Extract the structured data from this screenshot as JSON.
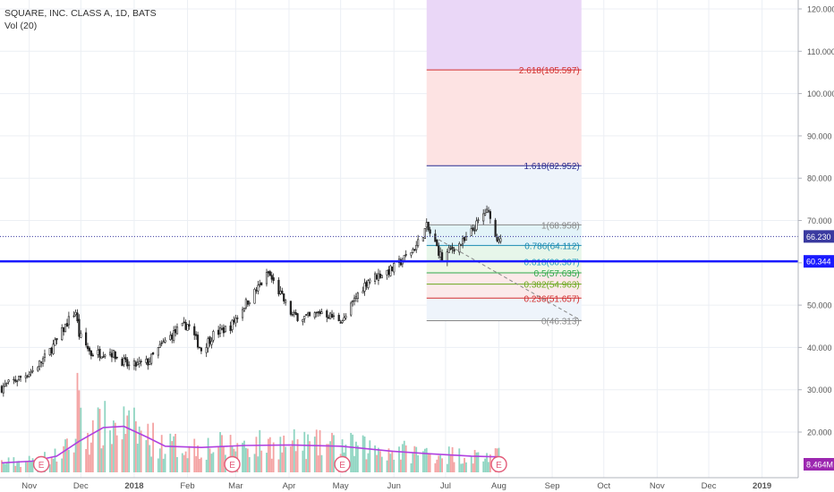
{
  "legend": {
    "symbol": "SQUARE, INC. CLASS A, 1D, BATS",
    "volume": "Vol (20)"
  },
  "colors": {
    "up": "#26a69a",
    "down": "#ef5350",
    "candle": "#222222",
    "vol_up": "#8fd5c2",
    "vol_down": "#f4a3a3",
    "vol_ma": "#b040e0",
    "support_line": "#1a1aff",
    "price_line": "#3a3aa0",
    "earnings_marker": "#e35c7a",
    "fib_top_fill": "#ead7f7",
    "fib_mid_fill": "#fde3e3",
    "fib_band_fill": "#ddeeff",
    "grid": "#eceff4"
  },
  "chart_data": {
    "type": "candlestick",
    "title": "SQUARE, INC. CLASS A, 1D, BATS",
    "y_axis": {
      "ticks": [
        20,
        30,
        40,
        50,
        60,
        70,
        80,
        90,
        100,
        110,
        120
      ],
      "tick_labels": [
        "20.000",
        "30.000",
        "40.000",
        "50.000",
        "60.000",
        "70.000",
        "80.000",
        "90.000",
        "100.000",
        "110.000",
        "120.000"
      ],
      "range": [
        14,
        122
      ]
    },
    "x_axis": {
      "labels": [
        "Nov",
        "Dec",
        "2018",
        "Feb",
        "Mar",
        "Apr",
        "May",
        "Jun",
        "Jul",
        "Aug",
        "Sep",
        "Oct",
        "Nov",
        "Dec",
        "2019"
      ],
      "label_dates": [
        "2017-11-01",
        "2017-12-01",
        "2018-01-01",
        "2018-02-01",
        "2018-03-01",
        "2018-04-01",
        "2018-05-01",
        "2018-06-01",
        "2018-07-01",
        "2018-08-01",
        "2018-09-01",
        "2018-10-01",
        "2018-11-01",
        "2018-12-01",
        "2019-01-01"
      ],
      "range": [
        "2017-10-15",
        "2019-01-22"
      ]
    },
    "last_price": {
      "value": 66.23,
      "label": "66.230"
    },
    "support_level": {
      "value": 60.344,
      "label": "60.344"
    },
    "volume_last": {
      "label": "8.464M"
    },
    "fibonacci": {
      "start_date": "2018-06-20",
      "end_date": "2018-09-18",
      "levels": [
        {
          "ratio": 2.618,
          "price": 105.597,
          "label": "2.618(105.597)",
          "color": "#d32f2f"
        },
        {
          "ratio": 1.618,
          "price": 82.952,
          "label": "1.618(82.952)",
          "color": "#2c2c8f"
        },
        {
          "ratio": 1,
          "price": 68.958,
          "label": "1(68.958)",
          "color": "#888888"
        },
        {
          "ratio": 0.786,
          "price": 64.112,
          "label": "0.786(64.112)",
          "color": "#1a8ab2"
        },
        {
          "ratio": 0.618,
          "price": 60.307,
          "label": "0.618(60.307)",
          "color": "#26a0c0"
        },
        {
          "ratio": 0.5,
          "price": 57.635,
          "label": "0.5(57.635)",
          "color": "#2ea84a"
        },
        {
          "ratio": 0.382,
          "price": 54.963,
          "label": "0.382(54.963)",
          "color": "#6aa81e"
        },
        {
          "ratio": 0.236,
          "price": 51.657,
          "label": "0.236(51.657)",
          "color": "#d32f2f"
        },
        {
          "ratio": 0,
          "price": 46.313,
          "label": "0(46.313)",
          "color": "#888888"
        }
      ]
    },
    "trend_line": {
      "start_date": "2018-06-27",
      "start_price": 65.5,
      "end_date": "2018-09-18",
      "end_price": 46.313
    },
    "earnings_dates": [
      "2017-11-08",
      "2018-02-27",
      "2018-05-02",
      "2018-08-01"
    ],
    "earnings_label": "E",
    "price_path": [
      {
        "date": "2017-10-16",
        "price": 30.5
      },
      {
        "date": "2017-10-25",
        "price": 32.5
      },
      {
        "date": "2017-11-03",
        "price": 34.5
      },
      {
        "date": "2017-11-10",
        "price": 37.5
      },
      {
        "date": "2017-11-17",
        "price": 41.5
      },
      {
        "date": "2017-11-24",
        "price": 46.5
      },
      {
        "date": "2017-11-28",
        "price": 48.5
      },
      {
        "date": "2017-11-30",
        "price": 43.0
      },
      {
        "date": "2017-12-07",
        "price": 38.5
      },
      {
        "date": "2017-12-18",
        "price": 39.0
      },
      {
        "date": "2017-12-29",
        "price": 35.5
      },
      {
        "date": "2018-01-09",
        "price": 36.5
      },
      {
        "date": "2018-01-19",
        "price": 41.5
      },
      {
        "date": "2018-01-26",
        "price": 44.0
      },
      {
        "date": "2018-02-01",
        "price": 45.5
      },
      {
        "date": "2018-02-09",
        "price": 39.5
      },
      {
        "date": "2018-02-16",
        "price": 43.0
      },
      {
        "date": "2018-02-26",
        "price": 45.0
      },
      {
        "date": "2018-03-06",
        "price": 50.0
      },
      {
        "date": "2018-03-13",
        "price": 53.5
      },
      {
        "date": "2018-03-20",
        "price": 57.5
      },
      {
        "date": "2018-03-27",
        "price": 52.5
      },
      {
        "date": "2018-04-03",
        "price": 47.5
      },
      {
        "date": "2018-04-13",
        "price": 47.0
      },
      {
        "date": "2018-04-20",
        "price": 48.5
      },
      {
        "date": "2018-04-27",
        "price": 47.0
      },
      {
        "date": "2018-05-03",
        "price": 46.5
      },
      {
        "date": "2018-05-10",
        "price": 52.0
      },
      {
        "date": "2018-05-17",
        "price": 56.0
      },
      {
        "date": "2018-05-31",
        "price": 58.5
      },
      {
        "date": "2018-06-07",
        "price": 61.0
      },
      {
        "date": "2018-06-14",
        "price": 64.0
      },
      {
        "date": "2018-06-20",
        "price": 68.5
      },
      {
        "date": "2018-06-25",
        "price": 64.5
      },
      {
        "date": "2018-06-29",
        "price": 61.0
      },
      {
        "date": "2018-07-05",
        "price": 63.5
      },
      {
        "date": "2018-07-12",
        "price": 65.0
      },
      {
        "date": "2018-07-19",
        "price": 69.0
      },
      {
        "date": "2018-07-24",
        "price": 72.0
      },
      {
        "date": "2018-07-27",
        "price": 71.5
      },
      {
        "date": "2018-07-30",
        "price": 66.0
      },
      {
        "date": "2018-08-02",
        "price": 66.2
      }
    ],
    "volume_ma_path": [
      {
        "date": "2017-10-16",
        "vol": 3.8
      },
      {
        "date": "2017-11-03",
        "vol": 4.5
      },
      {
        "date": "2017-11-17",
        "vol": 6.5
      },
      {
        "date": "2017-11-30",
        "vol": 12.5
      },
      {
        "date": "2017-12-14",
        "vol": 18.0
      },
      {
        "date": "2017-12-26",
        "vol": 18.5
      },
      {
        "date": "2018-01-09",
        "vol": 14.0
      },
      {
        "date": "2018-01-19",
        "vol": 10.5
      },
      {
        "date": "2018-02-09",
        "vol": 10.0
      },
      {
        "date": "2018-03-06",
        "vol": 10.8
      },
      {
        "date": "2018-04-02",
        "vol": 11.0
      },
      {
        "date": "2018-05-01",
        "vol": 10.5
      },
      {
        "date": "2018-05-31",
        "vol": 8.5
      },
      {
        "date": "2018-06-21",
        "vol": 7.5
      },
      {
        "date": "2018-07-16",
        "vol": 6.5
      },
      {
        "date": "2018-08-02",
        "vol": 6.2
      }
    ],
    "volume_axis_max": 45
  }
}
